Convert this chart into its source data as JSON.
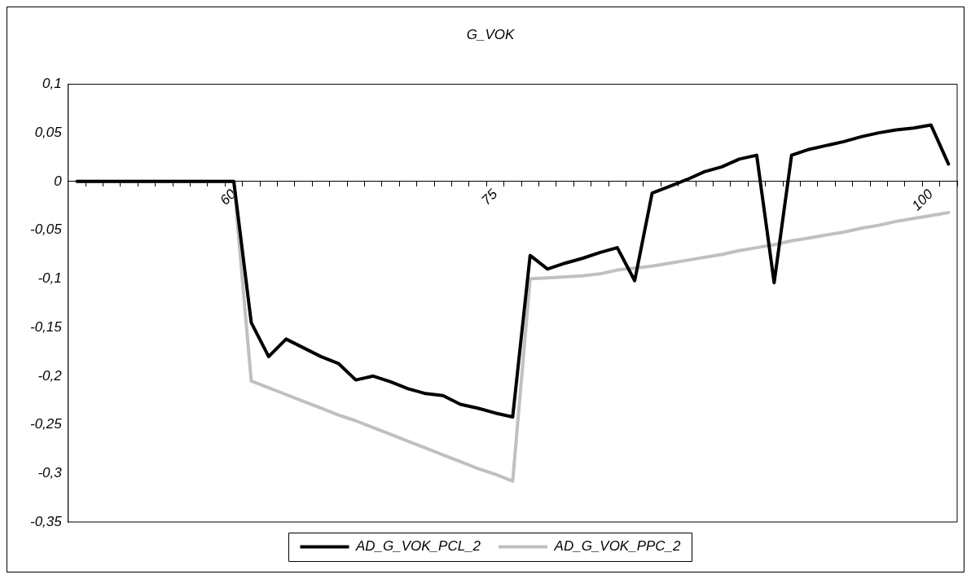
{
  "chart_data": {
    "type": "line",
    "title": "G_VOK",
    "categories": [
      null,
      null,
      null,
      null,
      null,
      null,
      null,
      null,
      null,
      "60",
      null,
      null,
      null,
      null,
      null,
      null,
      null,
      null,
      null,
      null,
      null,
      null,
      null,
      null,
      "75",
      null,
      null,
      null,
      null,
      null,
      null,
      null,
      null,
      null,
      null,
      null,
      null,
      null,
      null,
      null,
      null,
      null,
      null,
      null,
      null,
      null,
      null,
      null,
      null,
      "100",
      null
    ],
    "series": [
      {
        "name": "AD_G_VOK_PCL_2",
        "color": "#000000",
        "values": [
          0,
          0,
          0,
          0,
          0,
          0,
          0,
          0,
          0,
          0,
          -0.145,
          -0.18,
          -0.162,
          -0.171,
          -0.18,
          -0.187,
          -0.204,
          -0.2,
          -0.206,
          -0.213,
          -0.218,
          -0.22,
          -0.229,
          -0.233,
          -0.238,
          -0.242,
          -0.076,
          -0.09,
          -0.084,
          -0.079,
          -0.073,
          -0.068,
          -0.102,
          -0.012,
          -0.005,
          0.002,
          0.01,
          0.015,
          0.023,
          0.027,
          -0.104,
          0.027,
          0.033,
          0.037,
          0.041,
          0.046,
          0.05,
          0.053,
          0.055,
          0.058,
          0.018
        ]
      },
      {
        "name": "AD_G_VOK_PPC_2",
        "color": "#c0c0c0",
        "values": [
          0,
          0,
          0,
          0,
          0,
          0,
          0,
          0,
          0,
          0,
          -0.205,
          -0.212,
          -0.219,
          -0.226,
          -0.233,
          -0.24,
          -0.246,
          -0.253,
          -0.26,
          -0.267,
          -0.274,
          -0.281,
          -0.288,
          -0.295,
          -0.301,
          -0.308,
          -0.1,
          -0.099,
          -0.098,
          -0.097,
          -0.095,
          -0.091,
          -0.089,
          -0.087,
          -0.084,
          -0.081,
          -0.078,
          -0.075,
          -0.071,
          -0.068,
          -0.065,
          -0.061,
          -0.058,
          -0.055,
          -0.052,
          -0.048,
          -0.045,
          -0.041,
          -0.038,
          -0.035,
          -0.032
        ]
      }
    ],
    "ylim": [
      -0.35,
      0.1
    ],
    "yticks": [
      {
        "value": 0.1,
        "label": "0,1"
      },
      {
        "value": 0.05,
        "label": "0,05"
      },
      0,
      {
        "value": -0.05,
        "label": "-0,05"
      },
      {
        "value": -0.1,
        "label": "-0,1"
      },
      {
        "value": -0.15,
        "label": "-0,15"
      },
      {
        "value": -0.2,
        "label": "-0,2"
      },
      {
        "value": -0.25,
        "label": "-0,25"
      },
      {
        "value": -0.3,
        "label": "-0,3"
      },
      {
        "value": -0.35,
        "label": "-0,35"
      }
    ],
    "grid": false,
    "legend": "bottom",
    "marker": "none",
    "line_style": "solid"
  }
}
